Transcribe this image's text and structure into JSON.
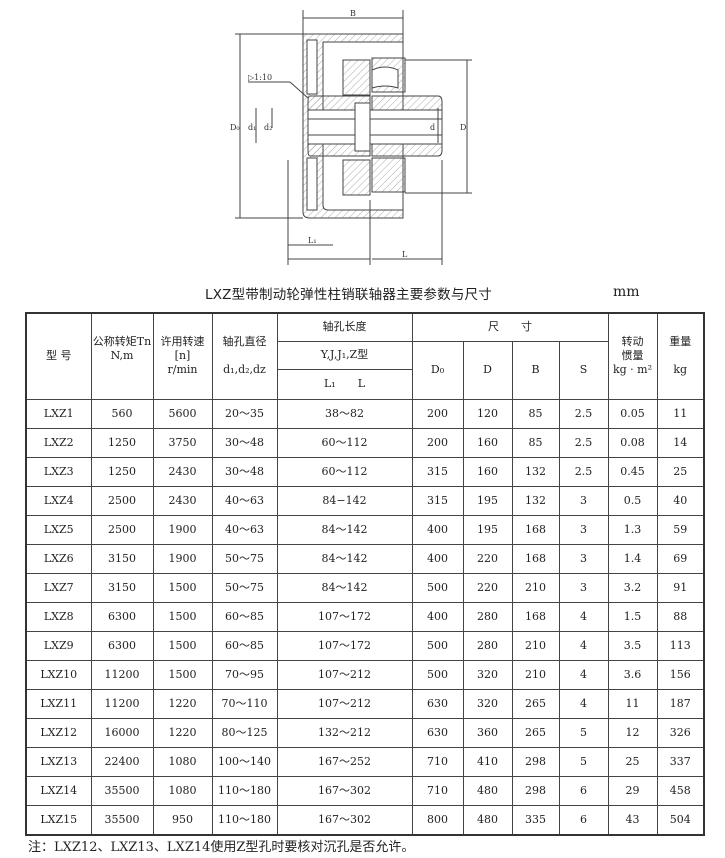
{
  "drawing": {
    "labels": {
      "B": "B",
      "taper": "▷1:10",
      "D0": "D₀",
      "d1": "d₁",
      "dz": "d₂",
      "d": "d",
      "D": "D",
      "L1": "L₁",
      "L": "L"
    }
  },
  "title": "LXZ型带制动轮弹性柱销联轴器主要参数与尺寸",
  "unit": "mm",
  "table": {
    "headers": {
      "model": "型 号",
      "torque": "公称转矩Tn",
      "torque_unit": "N,m",
      "speed": "许用转速",
      "speed_sym": "[n]",
      "speed_unit": "r/min",
      "bore": "轴孔直径",
      "bore_sym": "d₁,d₂,dz",
      "bore_len": "轴孔长度",
      "bore_len_types": "Y,J,J₁,Z型",
      "bore_len_L1": "L₁",
      "bore_len_L": "L",
      "dims": "尺　　寸",
      "D0": "D₀",
      "D": "D",
      "B": "B",
      "S": "S",
      "inertia": "转动",
      "inertia2": "惯量",
      "inertia_unit": "kg · m²",
      "weight": "重量",
      "weight_unit": "kg"
    },
    "rows": [
      [
        "LXZ1",
        "560",
        "5600",
        "20～35",
        "38～82",
        "200",
        "120",
        "85",
        "2.5",
        "0.05",
        "11"
      ],
      [
        "LXZ2",
        "1250",
        "3750",
        "30～48",
        "60～112",
        "200",
        "160",
        "85",
        "2.5",
        "0.08",
        "14"
      ],
      [
        "LXZ3",
        "1250",
        "2430",
        "30～48",
        "60～112",
        "315",
        "160",
        "132",
        "2.5",
        "0.45",
        "25"
      ],
      [
        "LXZ4",
        "2500",
        "2430",
        "40～63",
        "84−142",
        "315",
        "195",
        "132",
        "3",
        "0.5",
        "40"
      ],
      [
        "LXZ5",
        "2500",
        "1900",
        "40～63",
        "84～142",
        "400",
        "195",
        "168",
        "3",
        "1.3",
        "59"
      ],
      [
        "LXZ6",
        "3150",
        "1900",
        "50～75",
        "84～142",
        "400",
        "220",
        "168",
        "3",
        "1.4",
        "69"
      ],
      [
        "LXZ7",
        "3150",
        "1500",
        "50～75",
        "84～142",
        "500",
        "220",
        "210",
        "3",
        "3.2",
        "91"
      ],
      [
        "LXZ8",
        "6300",
        "1500",
        "60～85",
        "107～172",
        "400",
        "280",
        "168",
        "4",
        "1.5",
        "88"
      ],
      [
        "LXZ9",
        "6300",
        "1500",
        "60～85",
        "107～172",
        "500",
        "280",
        "210",
        "4",
        "3.5",
        "113"
      ],
      [
        "LXZ10",
        "11200",
        "1500",
        "70～95",
        "107～212",
        "500",
        "320",
        "210",
        "4",
        "3.6",
        "156"
      ],
      [
        "LXZ11",
        "11200",
        "1220",
        "70～110",
        "107～212",
        "630",
        "320",
        "265",
        "4",
        "11",
        "187"
      ],
      [
        "LXZ12",
        "16000",
        "1220",
        "80～125",
        "132～212",
        "630",
        "360",
        "265",
        "5",
        "12",
        "326"
      ],
      [
        "LXZ13",
        "22400",
        "1080",
        "100～140",
        "167～252",
        "710",
        "410",
        "298",
        "5",
        "25",
        "337"
      ],
      [
        "LXZ14",
        "35500",
        "1080",
        "110～180",
        "167～302",
        "710",
        "480",
        "298",
        "6",
        "29",
        "458"
      ],
      [
        "LXZ15",
        "35500",
        "950",
        "110～180",
        "167～302",
        "800",
        "480",
        "335",
        "6",
        "43",
        "504"
      ]
    ]
  },
  "note": "注：LXZ12、LXZ13、LXZ14使用Z型孔时要核对沉孔是否允许。"
}
